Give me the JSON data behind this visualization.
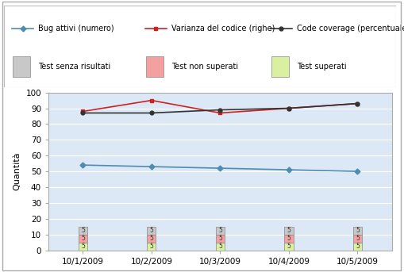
{
  "x_labels": [
    "10/1/2009",
    "10/2/2009",
    "10/3/2009",
    "10/4/2009",
    "10/5/2009"
  ],
  "x_positions": [
    0,
    1,
    2,
    3,
    4
  ],
  "bug_attivi": [
    54,
    53,
    52,
    51,
    50
  ],
  "varianza": [
    88,
    95,
    87,
    90,
    93
  ],
  "code_coverage": [
    87,
    87,
    89,
    90,
    93
  ],
  "bar_gray_val": 5,
  "bar_red_val": 5,
  "bar_green_val": 5,
  "color_bug": "#4e8cb0",
  "color_varianza": "#cc2222",
  "color_coverage": "#333333",
  "color_bar_gray": "#c8c8c8",
  "color_bar_red": "#f5a0a0",
  "color_bar_green": "#d8f0a0",
  "bg_plot": "#dce8f5",
  "bg_fig": "#ffffff",
  "ylim": [
    0,
    100
  ],
  "ylabel": "Quantità",
  "legend_line1": [
    "Bug attivi (numero)",
    "Varianza del codice (righe)",
    "Code coverage (percentuale)"
  ],
  "legend_line2": [
    "Test senza risultati",
    "Test non superati",
    "Test superati"
  ],
  "bar_width": 0.13,
  "bar_text": "5",
  "outer_border_color": "#aaaaaa",
  "grid_color": "#ffffff",
  "tick_fontsize": 7.5,
  "ylabel_fontsize": 8,
  "legend_fontsize": 7
}
